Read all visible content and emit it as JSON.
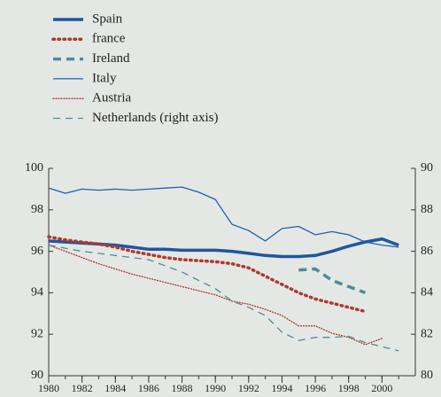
{
  "chart_data": {
    "type": "line",
    "x": [
      1980,
      1981,
      1982,
      1983,
      1984,
      1985,
      1986,
      1987,
      1988,
      1989,
      1990,
      1991,
      1992,
      1993,
      1994,
      1995,
      1996,
      1997,
      1998,
      1999,
      2000,
      2001
    ],
    "xlim": [
      1980,
      2002
    ],
    "xticks": [
      1980,
      1982,
      1984,
      1986,
      1988,
      1990,
      1992,
      1994,
      1996,
      1998,
      2000
    ],
    "ylim": [
      90,
      100
    ],
    "yticks": [
      90,
      92,
      94,
      96,
      98,
      100
    ],
    "y2lim": [
      80,
      90
    ],
    "y2ticks": [
      80,
      82,
      84,
      86,
      88,
      90
    ],
    "series": [
      {
        "name": "Spain",
        "color": "#1f56a0",
        "linestyle": "solid",
        "weight": "bold",
        "values": [
          96.5,
          96.45,
          96.4,
          96.35,
          96.3,
          96.2,
          96.1,
          96.1,
          96.05,
          96.05,
          96.05,
          96.0,
          95.9,
          95.8,
          95.75,
          95.75,
          95.8,
          96.0,
          96.25,
          96.45,
          96.6,
          96.3
        ]
      },
      {
        "name": "france",
        "color": "#b0392e",
        "linestyle": "dotted",
        "weight": "bold",
        "values": [
          96.7,
          96.55,
          96.45,
          96.35,
          96.2,
          96.0,
          95.85,
          95.7,
          95.6,
          95.55,
          95.5,
          95.4,
          95.2,
          94.8,
          94.4,
          94.0,
          93.7,
          93.5,
          93.3,
          93.1,
          null,
          null
        ]
      },
      {
        "name": "Ireland",
        "color": "#4e8b9c",
        "linestyle": "dashed",
        "weight": "bold",
        "values": [
          null,
          null,
          null,
          null,
          null,
          null,
          null,
          null,
          null,
          null,
          null,
          null,
          null,
          null,
          null,
          95.1,
          95.15,
          94.6,
          94.3,
          94.0,
          null,
          null
        ]
      },
      {
        "name": "Italy",
        "color": "#1f5fb0",
        "linestyle": "solid",
        "weight": "normal",
        "values": [
          99.05,
          98.8,
          99.0,
          98.95,
          99.0,
          98.95,
          99.0,
          99.05,
          99.1,
          98.85,
          98.5,
          97.3,
          97.0,
          96.5,
          97.1,
          97.2,
          96.8,
          96.95,
          96.8,
          96.45,
          96.3,
          96.2
        ]
      },
      {
        "name": "Austria",
        "color": "#b0392e",
        "linestyle": "dotted",
        "weight": "normal",
        "values": [
          96.3,
          96.0,
          95.7,
          95.4,
          95.15,
          94.9,
          94.7,
          94.5,
          94.3,
          94.1,
          93.9,
          93.6,
          93.45,
          93.2,
          92.9,
          92.4,
          92.4,
          92.05,
          91.85,
          91.5,
          91.8,
          null
        ]
      },
      {
        "name": "Netherlands (right axis)",
        "color": "#4e8b9c",
        "linestyle": "dashed",
        "weight": "normal",
        "axis": "y2",
        "values": [
          86.3,
          86.15,
          86.0,
          85.9,
          85.8,
          85.7,
          85.6,
          85.3,
          85.0,
          84.6,
          84.2,
          83.6,
          83.3,
          82.9,
          82.1,
          81.7,
          81.85,
          81.85,
          81.9,
          81.6,
          81.4,
          81.2
        ]
      }
    ]
  }
}
